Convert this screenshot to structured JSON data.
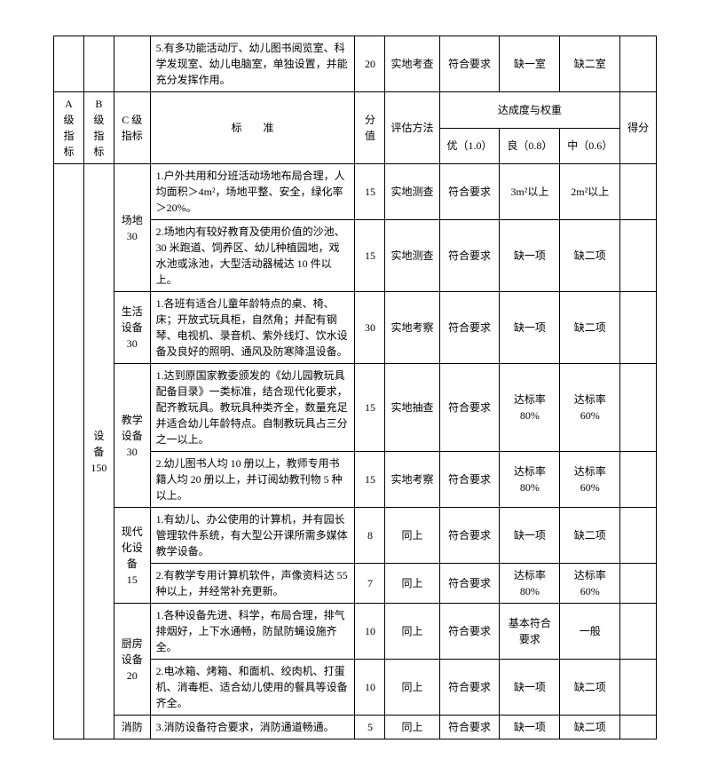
{
  "top_row": {
    "desc": "5.有多功能活动厅、幼儿图书阅览室、科学发现室、幼儿电脑室，单独设置，并能充分发挥作用。",
    "score": "20",
    "method": "实地考查",
    "lv1": "符合要求",
    "lv2": "缺一室",
    "lv3": "缺二室"
  },
  "headers": {
    "a": "A 级\n指标",
    "b": "B 级\n指标",
    "c": "C 级\n指标",
    "std": "标　　准",
    "score": "分值",
    "method": "评估方法",
    "ach": "达成度与权重",
    "g1": "优（1.0）",
    "g2": "良（0.8）",
    "g3": "中（0.6）",
    "total": "得分"
  },
  "b_label": "设备\n150",
  "groups": [
    {
      "c": "场地\n30",
      "rows": [
        {
          "d": "1.户外共用和分班活动场地布局合理，人均面积＞4m²，场地平整、安全，绿化率＞20%。",
          "s": "15",
          "m": "实地测查",
          "l1": "符合要求",
          "l2": "3m²以上",
          "l3": "2m²以上"
        },
        {
          "d": "2.场地内有较好教育及使用价值的沙池、30 米跑道、饲养区、幼儿种植园地，戏水池或泳池，大型活动器械达 10 件以上。",
          "s": "15",
          "m": "实地测查",
          "l1": "符合要求",
          "l2": "缺一项",
          "l3": "缺二项"
        }
      ]
    },
    {
      "c": "生活\n设备\n30",
      "rows": [
        {
          "d": "1.各班有适合儿童年龄特点的桌、椅、床；开放式玩具柜，自然角；并配有钢琴、电视机、录音机、紫外线灯、饮水设备及良好的照明、通风及防寒降温设备。",
          "s": "30",
          "m": "实地考察",
          "l1": "符合要求",
          "l2": "缺一项",
          "l3": "缺二项"
        }
      ]
    },
    {
      "c": "教学\n设备\n30",
      "rows": [
        {
          "d": "1.达到原国家教委颁发的《幼儿园教玩具配备目录》一类标准，结合现代化要求，配齐教玩具。教玩具种类齐全，数量充足并适合幼儿年龄特点。自制教玩具占三分之一以上。",
          "s": "15",
          "m": "实地抽查",
          "l1": "符合要求",
          "l2": "达标率\n80%",
          "l3": "达标率\n60%"
        },
        {
          "d": "2.幼儿图书人均 10 册以上，教师专用书籍人均 20 册以上，并订阅幼教刊物 5 种以上。",
          "s": "15",
          "m": "实地考察",
          "l1": "符合要求",
          "l2": "达标率\n80%",
          "l3": "达标率\n60%"
        }
      ]
    },
    {
      "c": "现代\n化设\n备\n15",
      "rows": [
        {
          "d": "1.有幼儿、办公使用的计算机，并有园长管理软件系统，有大型公开课所需多媒体教学设备。",
          "s": "8",
          "m": "同上",
          "l1": "符合要求",
          "l2": "缺一项",
          "l3": "缺二项"
        },
        {
          "d": "2.有教学专用计算机软件，声像资料达 55 种以上，并经常补充更新。",
          "s": "7",
          "m": "同上",
          "l1": "符合要求",
          "l2": "达标率\n80%",
          "l3": "达标率\n60%"
        }
      ]
    },
    {
      "c": "厨房\n设备\n20",
      "rows": [
        {
          "d": "1.各种设备先进、科学，布局合理，排气排烟好，上下水通畅，防鼠防蝇设施齐全。",
          "s": "10",
          "m": "同上",
          "l1": "符合要求",
          "l2": "基本符合\n要求",
          "l3": "一般"
        },
        {
          "d": "2.电冰箱、烤箱、和面机、绞肉机、打蛋机、消毒柜、适合幼儿使用的餐具等设备齐全。",
          "s": "10",
          "m": "同上",
          "l1": "符合要求",
          "l2": "缺一项",
          "l3": "缺二项"
        }
      ]
    },
    {
      "c": "消防",
      "rows": [
        {
          "d": "3.消防设备符合要求，消防通道畅通。",
          "s": "5",
          "m": "同上",
          "l1": "符合要求",
          "l2": "缺一项",
          "l3": "缺二项"
        }
      ]
    }
  ]
}
